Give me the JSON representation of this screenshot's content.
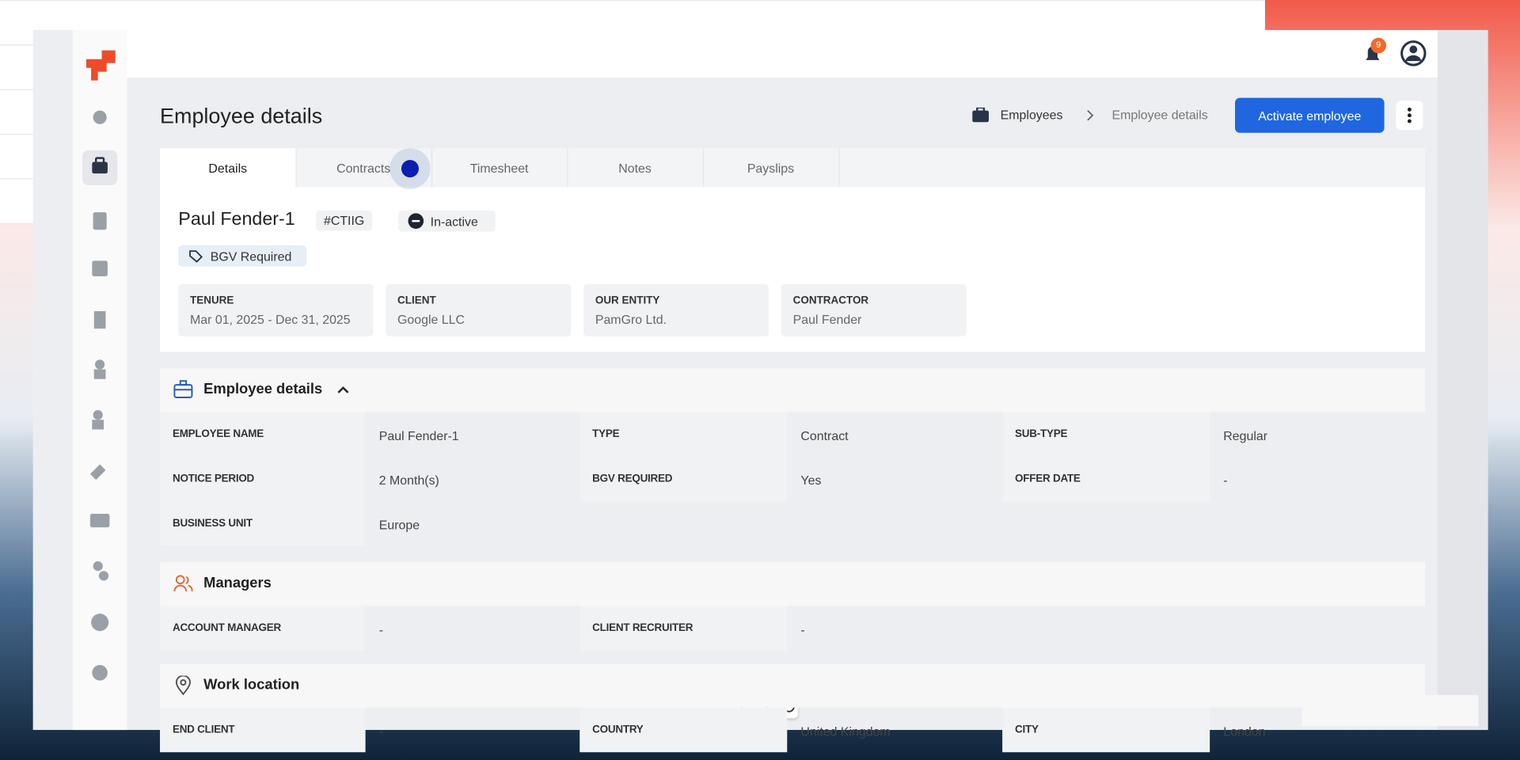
{
  "header": {
    "notification_count": "9"
  },
  "page": {
    "title": "Employee details",
    "breadcrumb": [
      "Employees",
      "Employee details"
    ],
    "action_button": "Activate employee",
    "tabs": [
      "Details",
      "Contracts",
      "Timesheet",
      "Notes",
      "Payslips"
    ]
  },
  "profile": {
    "name": "Paul Fender-1",
    "code": "#CTIIG",
    "status": "In-active",
    "tag": "BGV Required",
    "cards": [
      {
        "label": "TENURE",
        "value": "Mar 01, 2025 - Dec 31, 2025"
      },
      {
        "label": "CLIENT",
        "value": "Google LLC"
      },
      {
        "label": "OUR ENTITY",
        "value": "PamGro Ltd."
      },
      {
        "label": "CONTRACTOR",
        "value": "Paul Fender"
      }
    ]
  },
  "sections": [
    {
      "title": "Employee details",
      "rows": [
        [
          {
            "label": "EMPLOYEE NAME",
            "value": "Paul Fender-1"
          },
          {
            "label": "TYPE",
            "value": "Contract"
          },
          {
            "label": "SUB-TYPE",
            "value": "Regular"
          }
        ],
        [
          {
            "label": "NOTICE PERIOD",
            "value": "2 Month(s)"
          },
          {
            "label": "BGV REQUIRED",
            "value": "Yes"
          },
          {
            "label": "OFFER DATE",
            "value": "-"
          }
        ],
        [
          {
            "label": "BUSINESS UNIT",
            "value": "Europe"
          }
        ]
      ]
    },
    {
      "title": "Managers",
      "rows": [
        [
          {
            "label": "ACCOUNT MANAGER",
            "value": "-"
          },
          {
            "label": "CLIENT RECRUITER",
            "value": "-"
          }
        ]
      ]
    },
    {
      "title": "Work location",
      "rows": [
        [
          {
            "label": "END CLIENT",
            "value": "-"
          },
          {
            "label": "COUNTRY",
            "value": "United Kingdom"
          },
          {
            "label": "CITY",
            "value": "London"
          }
        ]
      ]
    }
  ]
}
